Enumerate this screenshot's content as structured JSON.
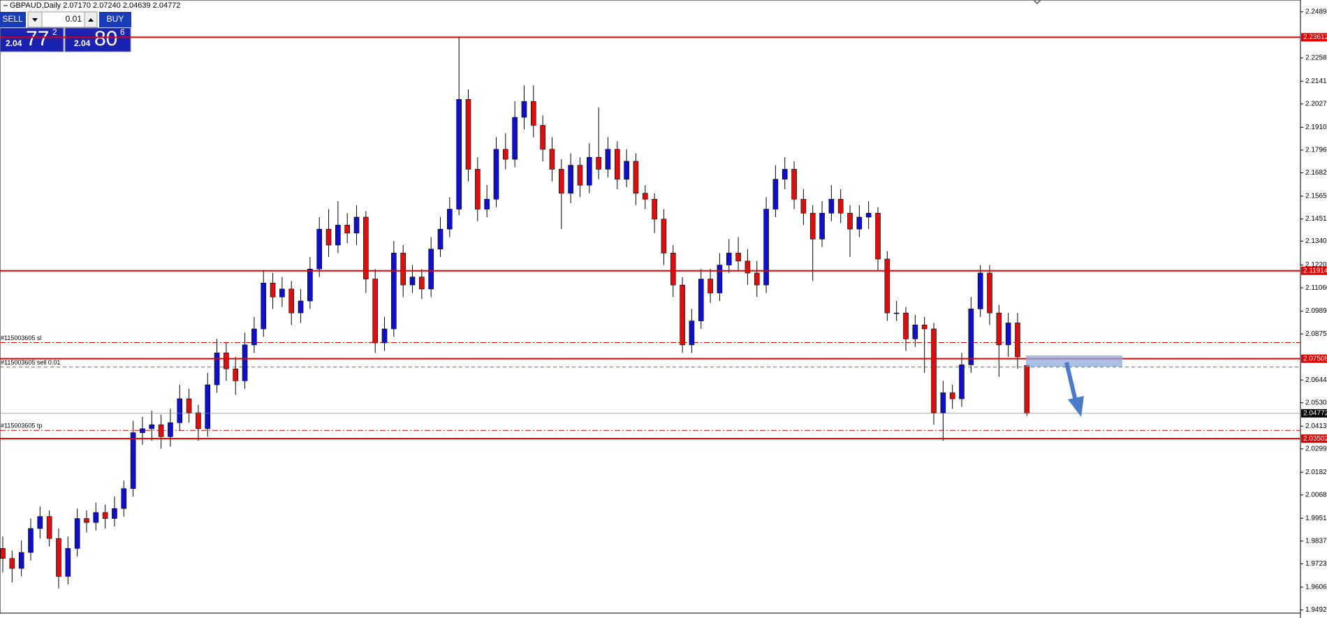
{
  "header": "GBPAUD,Daily  2.07170 2.07240 2.04639 2.04772",
  "trade_panel": {
    "sell": "SELL",
    "buy": "BUY",
    "lots": "0.01",
    "bid": {
      "big": "2.04",
      "pips": "77",
      "frac": "2"
    },
    "ask": {
      "big": "2.04",
      "pips": "80",
      "frac": "6"
    }
  },
  "chart_data": {
    "type": "candlestick",
    "ylim": [
      1.9476,
      2.2548
    ],
    "yticks": [
      {
        "value": 2.2489,
        "label": "2.24890"
      },
      {
        "value": 2.2258,
        "label": "2.22580"
      },
      {
        "value": 2.2141,
        "label": "2.21410"
      },
      {
        "value": 2.2027,
        "label": "2.20270"
      },
      {
        "value": 2.191,
        "label": "2.19100"
      },
      {
        "value": 2.1796,
        "label": "2.17960"
      },
      {
        "value": 2.1682,
        "label": "2.16820"
      },
      {
        "value": 2.1565,
        "label": "2.15650"
      },
      {
        "value": 2.1451,
        "label": "2.14510"
      },
      {
        "value": 2.134,
        "label": "2.13400"
      },
      {
        "value": 2.122,
        "label": "2.12200"
      },
      {
        "value": 2.1106,
        "label": "2.11060"
      },
      {
        "value": 2.0989,
        "label": "2.09890"
      },
      {
        "value": 2.0875,
        "label": "2.08750"
      },
      {
        "value": 2.0644,
        "label": "2.06440"
      },
      {
        "value": 2.053,
        "label": "2.05300"
      },
      {
        "value": 2.0413,
        "label": "2.04130"
      },
      {
        "value": 2.0299,
        "label": "2.02990"
      },
      {
        "value": 2.0182,
        "label": "2.01820"
      },
      {
        "value": 2.0068,
        "label": "2.00680"
      },
      {
        "value": 1.9951,
        "label": "1.99510"
      },
      {
        "value": 1.9837,
        "label": "1.98370"
      },
      {
        "value": 1.9723,
        "label": "1.97230"
      },
      {
        "value": 1.9606,
        "label": "1.96060"
      },
      {
        "value": 1.9492,
        "label": "1.94920"
      }
    ],
    "up_color": "#1010c8",
    "down_color": "#d81010",
    "levels": [
      {
        "value": 2.23612,
        "color": "#e00000"
      },
      {
        "value": 2.11914,
        "color": "#e00000"
      },
      {
        "value": 2.07508,
        "color": "#e00000"
      },
      {
        "value": 2.03502,
        "color": "#e00000"
      }
    ],
    "price_line": {
      "value": 2.04772,
      "color": "#000000"
    },
    "orders": [
      {
        "label": "#115003605 sl",
        "value": 2.0832,
        "color": "#e00000",
        "style": "dashdot"
      },
      {
        "label": "#115003605 sell 0.01",
        "value": 2.0709,
        "color": "#20a020",
        "style": "dash"
      },
      {
        "label": "#115003605 tp",
        "value": 2.0392,
        "color": "#e00000",
        "style": "dashdot"
      }
    ],
    "ohlc": [
      [
        1.98,
        1.986,
        1.968,
        1.975
      ],
      [
        1.975,
        1.979,
        1.963,
        1.97
      ],
      [
        1.97,
        1.984,
        1.966,
        1.978
      ],
      [
        1.978,
        1.995,
        1.974,
        1.99
      ],
      [
        1.99,
        2.001,
        1.985,
        1.996
      ],
      [
        1.996,
        1.999,
        1.981,
        1.985
      ],
      [
        1.985,
        1.99,
        1.96,
        1.966
      ],
      [
        1.966,
        1.986,
        1.962,
        1.98
      ],
      [
        1.98,
        2.0,
        1.976,
        1.995
      ],
      [
        1.995,
        1.999,
        1.988,
        1.993
      ],
      [
        1.993,
        2.003,
        1.989,
        1.998
      ],
      [
        1.998,
        2.002,
        1.99,
        1.995
      ],
      [
        1.995,
        2.006,
        1.991,
        2.0
      ],
      [
        2.0,
        2.014,
        1.996,
        2.01
      ],
      [
        2.01,
        2.044,
        2.006,
        2.038
      ],
      [
        2.038,
        2.046,
        2.032,
        2.04
      ],
      [
        2.04,
        2.049,
        2.034,
        2.042
      ],
      [
        2.042,
        2.047,
        2.03,
        2.036
      ],
      [
        2.036,
        2.05,
        2.031,
        2.043
      ],
      [
        2.043,
        2.062,
        2.039,
        2.055
      ],
      [
        2.055,
        2.06,
        2.043,
        2.048
      ],
      [
        2.048,
        2.052,
        2.034,
        2.04
      ],
      [
        2.04,
        2.068,
        2.036,
        2.062
      ],
      [
        2.062,
        2.085,
        2.058,
        2.078
      ],
      [
        2.078,
        2.083,
        2.064,
        2.07
      ],
      [
        2.07,
        2.076,
        2.057,
        2.064
      ],
      [
        2.064,
        2.088,
        2.06,
        2.082
      ],
      [
        2.082,
        2.096,
        2.078,
        2.09
      ],
      [
        2.09,
        2.119,
        2.086,
        2.113
      ],
      [
        2.113,
        2.118,
        2.1,
        2.106
      ],
      [
        2.106,
        2.116,
        2.101,
        2.11
      ],
      [
        2.11,
        2.114,
        2.092,
        2.098
      ],
      [
        2.098,
        2.11,
        2.093,
        2.104
      ],
      [
        2.104,
        2.126,
        2.1,
        2.12
      ],
      [
        2.12,
        2.146,
        2.116,
        2.14
      ],
      [
        2.14,
        2.15,
        2.126,
        2.132
      ],
      [
        2.132,
        2.154,
        2.128,
        2.142
      ],
      [
        2.142,
        2.148,
        2.133,
        2.138
      ],
      [
        2.138,
        2.152,
        2.132,
        2.146
      ],
      [
        2.146,
        2.149,
        2.108,
        2.115
      ],
      [
        2.115,
        2.12,
        2.078,
        2.083
      ],
      [
        2.083,
        2.096,
        2.079,
        2.09
      ],
      [
        2.09,
        2.134,
        2.086,
        2.128
      ],
      [
        2.128,
        2.132,
        2.106,
        2.112
      ],
      [
        2.112,
        2.122,
        2.108,
        2.116
      ],
      [
        2.116,
        2.12,
        2.105,
        2.11
      ],
      [
        2.11,
        2.136,
        2.106,
        2.13
      ],
      [
        2.13,
        2.146,
        2.126,
        2.14
      ],
      [
        2.14,
        2.156,
        2.136,
        2.15
      ],
      [
        2.15,
        2.236,
        2.147,
        2.205
      ],
      [
        2.205,
        2.21,
        2.164,
        2.17
      ],
      [
        2.17,
        2.176,
        2.144,
        2.15
      ],
      [
        2.15,
        2.162,
        2.146,
        2.155
      ],
      [
        2.155,
        2.186,
        2.151,
        2.18
      ],
      [
        2.18,
        2.188,
        2.17,
        2.175
      ],
      [
        2.175,
        2.204,
        2.171,
        2.196
      ],
      [
        2.196,
        2.212,
        2.19,
        2.204
      ],
      [
        2.204,
        2.212,
        2.186,
        2.192
      ],
      [
        2.192,
        2.197,
        2.174,
        2.18
      ],
      [
        2.18,
        2.186,
        2.164,
        2.17
      ],
      [
        2.17,
        2.175,
        2.14,
        2.158
      ],
      [
        2.158,
        2.178,
        2.153,
        2.172
      ],
      [
        2.172,
        2.176,
        2.156,
        2.162
      ],
      [
        2.162,
        2.183,
        2.158,
        2.176
      ],
      [
        2.176,
        2.201,
        2.165,
        2.17
      ],
      [
        2.17,
        2.186,
        2.166,
        2.18
      ],
      [
        2.18,
        2.184,
        2.16,
        2.165
      ],
      [
        2.165,
        2.18,
        2.161,
        2.174
      ],
      [
        2.174,
        2.178,
        2.152,
        2.158
      ],
      [
        2.158,
        2.162,
        2.15,
        2.155
      ],
      [
        2.155,
        2.158,
        2.138,
        2.145
      ],
      [
        2.145,
        2.15,
        2.122,
        2.128
      ],
      [
        2.128,
        2.132,
        2.106,
        2.112
      ],
      [
        2.112,
        2.116,
        2.078,
        2.082
      ],
      [
        2.082,
        2.1,
        2.078,
        2.094
      ],
      [
        2.094,
        2.12,
        2.09,
        2.115
      ],
      [
        2.115,
        2.12,
        2.103,
        2.108
      ],
      [
        2.108,
        2.128,
        2.104,
        2.122
      ],
      [
        2.122,
        2.135,
        2.118,
        2.128
      ],
      [
        2.128,
        2.136,
        2.119,
        2.124
      ],
      [
        2.124,
        2.13,
        2.112,
        2.118
      ],
      [
        2.118,
        2.124,
        2.106,
        2.112
      ],
      [
        2.112,
        2.156,
        2.108,
        2.15
      ],
      [
        2.15,
        2.172,
        2.146,
        2.165
      ],
      [
        2.165,
        2.176,
        2.16,
        2.17
      ],
      [
        2.17,
        2.174,
        2.15,
        2.155
      ],
      [
        2.155,
        2.16,
        2.142,
        2.148
      ],
      [
        2.148,
        2.152,
        2.114,
        2.135
      ],
      [
        2.135,
        2.154,
        2.131,
        2.148
      ],
      [
        2.148,
        2.162,
        2.144,
        2.155
      ],
      [
        2.155,
        2.16,
        2.143,
        2.148
      ],
      [
        2.148,
        2.152,
        2.126,
        2.14
      ],
      [
        2.14,
        2.152,
        2.136,
        2.146
      ],
      [
        2.146,
        2.154,
        2.14,
        2.148
      ],
      [
        2.148,
        2.151,
        2.119,
        2.125
      ],
      [
        2.125,
        2.129,
        2.094,
        2.098
      ],
      [
        2.098,
        2.104,
        2.094,
        2.098
      ],
      [
        2.098,
        2.101,
        2.079,
        2.085
      ],
      [
        2.085,
        2.097,
        2.081,
        2.092
      ],
      [
        2.092,
        2.096,
        2.068,
        2.09
      ],
      [
        2.09,
        2.093,
        2.042,
        2.048
      ],
      [
        2.048,
        2.064,
        2.034,
        2.058
      ],
      [
        2.058,
        2.062,
        2.05,
        2.055
      ],
      [
        2.055,
        2.078,
        2.051,
        2.072
      ],
      [
        2.072,
        2.106,
        2.068,
        2.1
      ],
      [
        2.1,
        2.122,
        2.096,
        2.118
      ],
      [
        2.118,
        2.122,
        2.092,
        2.098
      ],
      [
        2.098,
        2.102,
        2.066,
        2.082
      ],
      [
        2.082,
        2.098,
        2.076,
        2.093
      ],
      [
        2.093,
        2.098,
        2.07,
        2.076
      ],
      [
        2.0717,
        2.0724,
        2.04639,
        2.04772
      ]
    ]
  }
}
